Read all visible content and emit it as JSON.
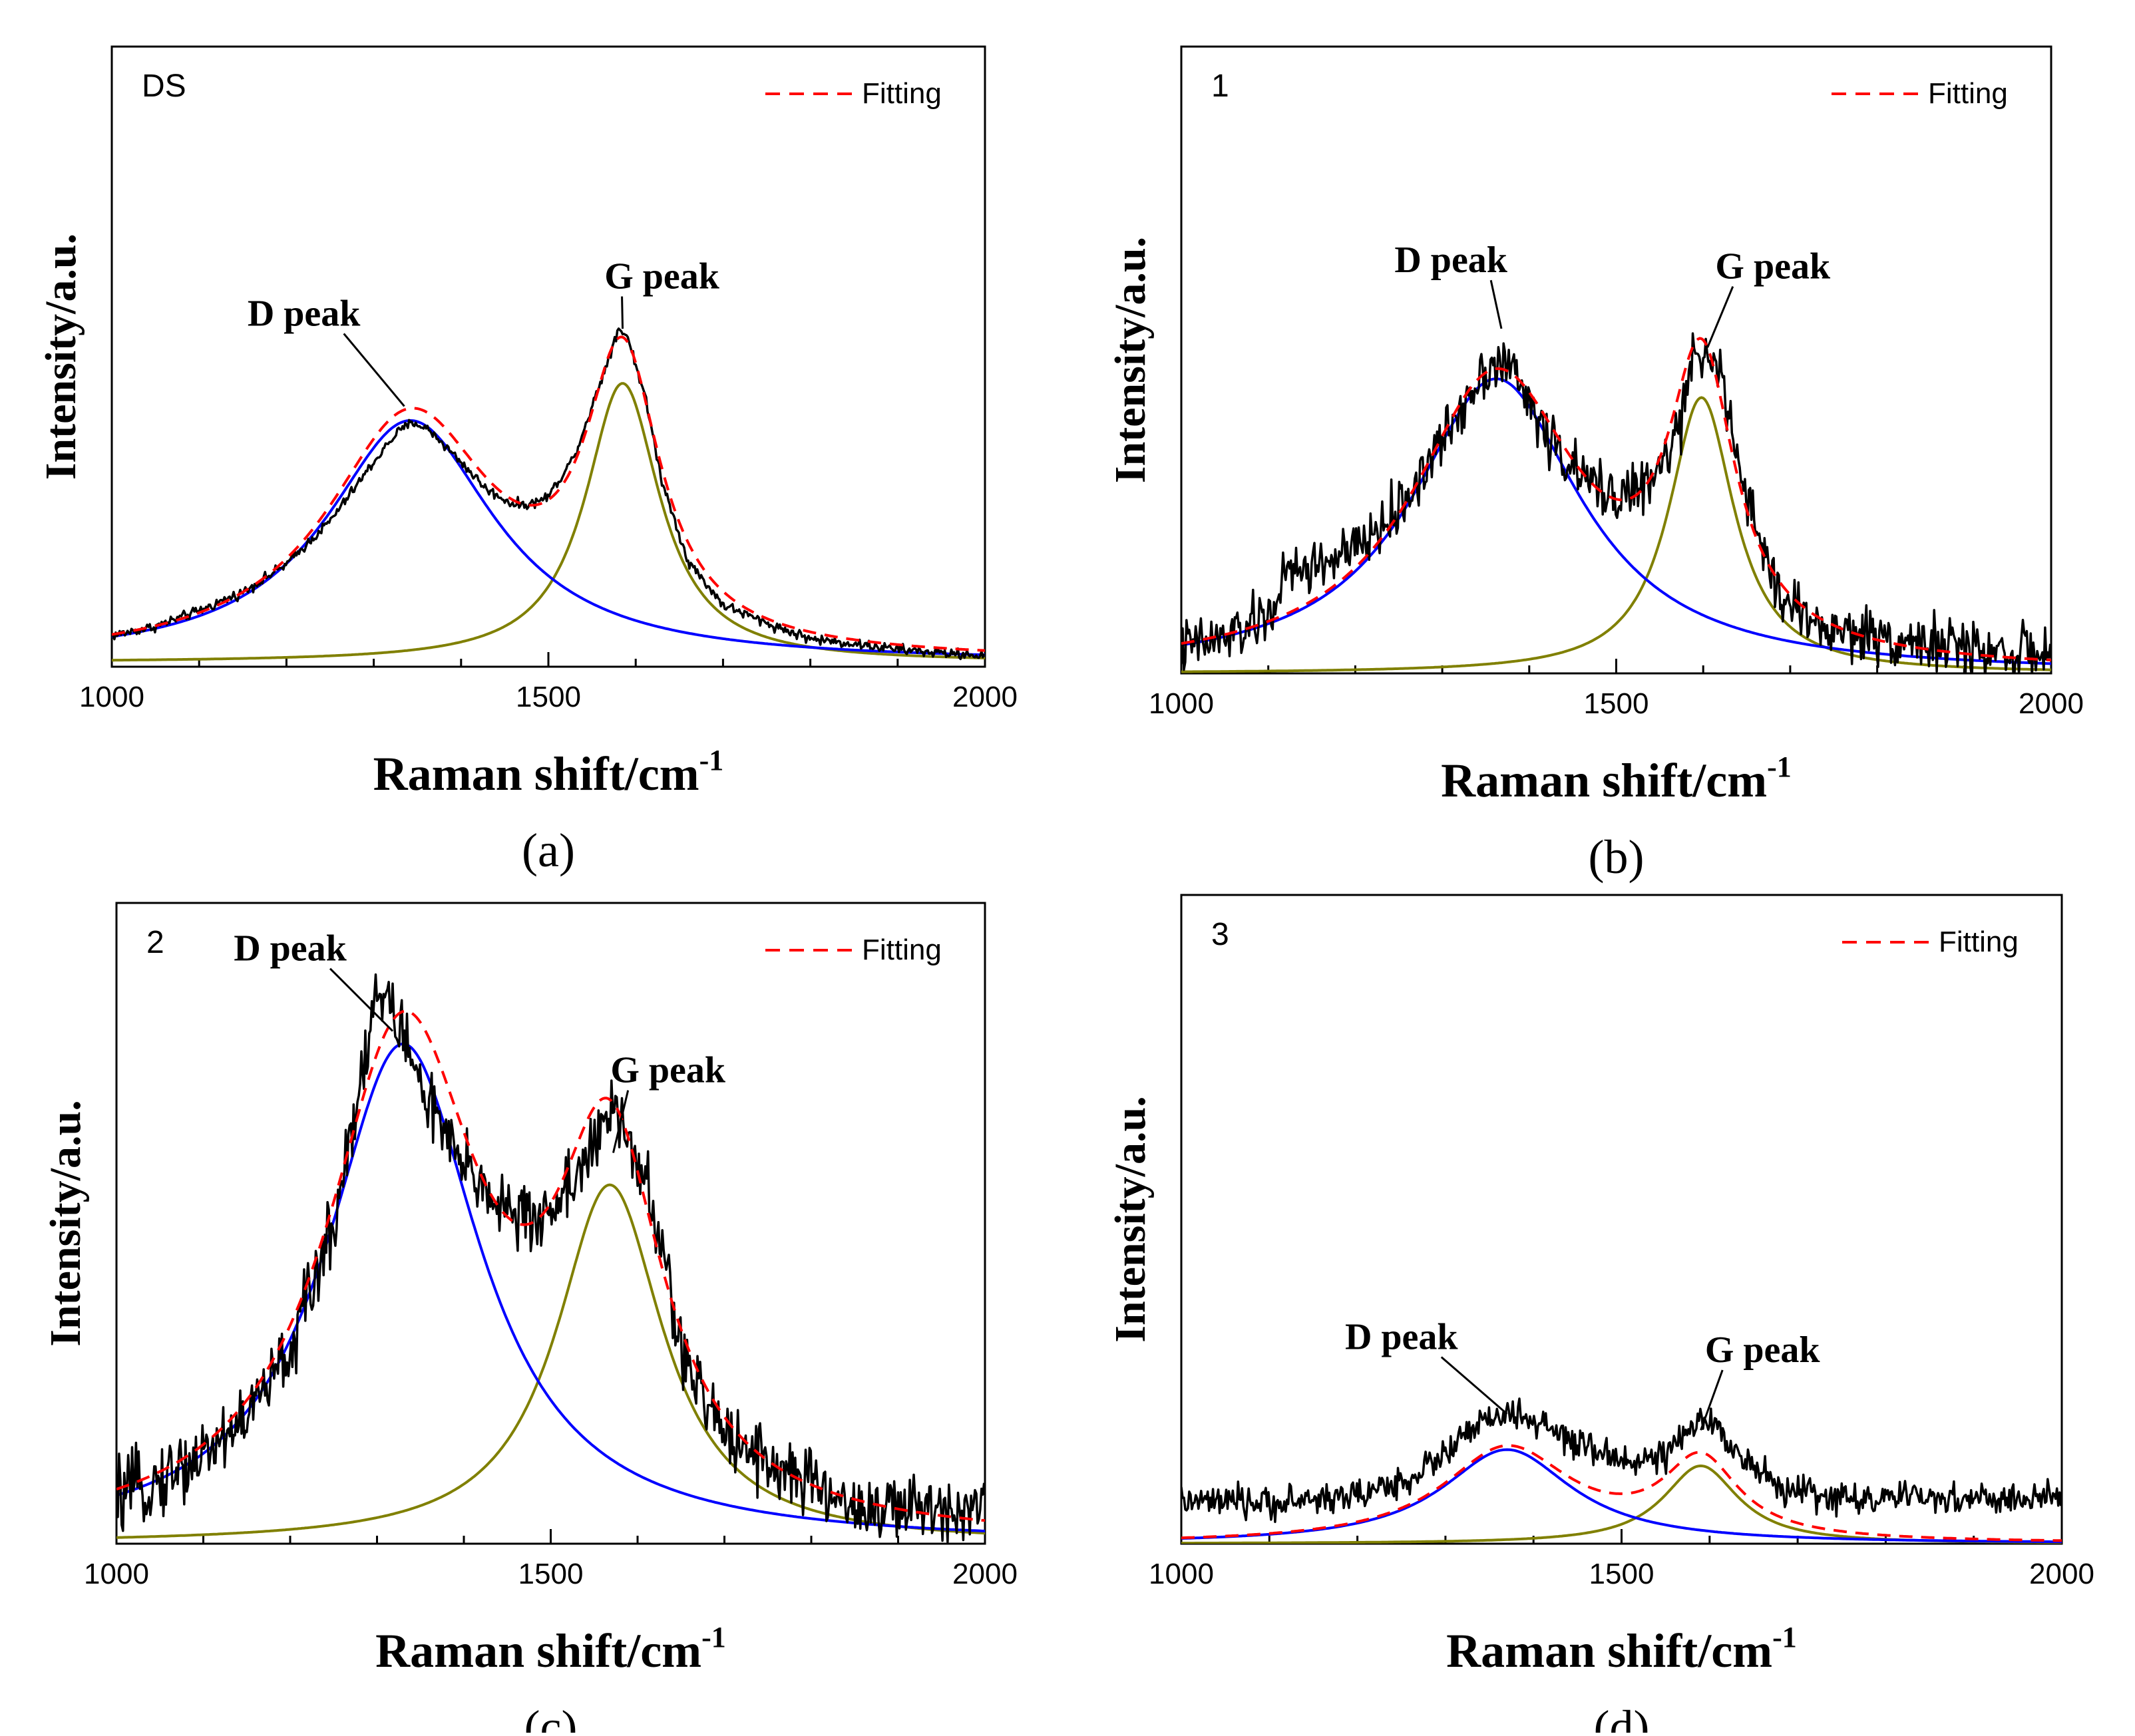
{
  "figure": {
    "panels_order": [
      "a",
      "b",
      "c",
      "d"
    ]
  },
  "colors": {
    "measured": "#000000",
    "fitting": "#ff0000",
    "d_component": "#0000ff",
    "g_component": "#808000"
  },
  "chart_data": [
    {
      "type": "line",
      "panel_label": "(a)",
      "sample_label": "DS",
      "xlabel": "Raman shift/cm",
      "xlabel_sup": "-1",
      "ylabel": "Intensity/a.u.",
      "xlim": [
        1000,
        2000
      ],
      "ylim": [
        0,
        1
      ],
      "x_ticks": [
        1000,
        1500,
        2000
      ],
      "legend": {
        "placement": "top-right",
        "entries": [
          "Fitting"
        ]
      },
      "annotations": [
        {
          "text": "D peak",
          "x_label": 1220,
          "y_label": 0.55,
          "x_arrow": 1335,
          "y_arrow": 0.42
        },
        {
          "text": "G peak",
          "x_label": 1630,
          "y_label": 0.61,
          "x_arrow": 1585,
          "y_arrow": 0.545
        }
      ],
      "series": [
        {
          "role": "d",
          "shape": "lorentzian",
          "center": 1342,
          "half_width": 118,
          "amplitude": 0.39,
          "baseline": 0.007
        },
        {
          "role": "g",
          "shape": "lorentzian",
          "center": 1585,
          "half_width": 52,
          "amplitude": 0.45,
          "baseline": 0.007
        },
        {
          "role": "fit",
          "note": "sum of D and G components"
        },
        {
          "role": "measured",
          "points": [
            [
              1000,
              0.05
            ],
            [
              1050,
              0.065
            ],
            [
              1100,
              0.09
            ],
            [
              1150,
              0.12
            ],
            [
              1200,
              0.165
            ],
            [
              1250,
              0.235
            ],
            [
              1300,
              0.33
            ],
            [
              1325,
              0.375
            ],
            [
              1345,
              0.395
            ],
            [
              1365,
              0.38
            ],
            [
              1400,
              0.33
            ],
            [
              1430,
              0.285
            ],
            [
              1460,
              0.262
            ],
            [
              1480,
              0.262
            ],
            [
              1500,
              0.275
            ],
            [
              1530,
              0.34
            ],
            [
              1560,
              0.46
            ],
            [
              1580,
              0.545
            ],
            [
              1590,
              0.535
            ],
            [
              1610,
              0.44
            ],
            [
              1630,
              0.3
            ],
            [
              1660,
              0.17
            ],
            [
              1700,
              0.1
            ],
            [
              1750,
              0.07
            ],
            [
              1800,
              0.045
            ],
            [
              1850,
              0.037
            ],
            [
              1900,
              0.028
            ],
            [
              1950,
              0.022
            ],
            [
              2000,
              0.018
            ]
          ],
          "noise": 0.004
        }
      ]
    },
    {
      "type": "line",
      "panel_label": "(b)",
      "sample_label": "1",
      "xlabel": "Raman shift/cm",
      "xlabel_sup": "-1",
      "ylabel": "Intensity/a.u.",
      "xlim": [
        1000,
        2000
      ],
      "ylim": [
        0,
        1
      ],
      "x_ticks": [
        1000,
        1500,
        2000
      ],
      "legend": {
        "placement": "top-right",
        "entries": [
          "Fitting"
        ]
      },
      "annotations": [
        {
          "text": "D peak",
          "x_label": 1310,
          "y_label": 0.64,
          "x_arrow": 1368,
          "y_arrow": 0.55
        },
        {
          "text": "G peak",
          "x_label": 1680,
          "y_label": 0.63,
          "x_arrow": 1605,
          "y_arrow": 0.52
        }
      ],
      "series": [
        {
          "role": "d",
          "shape": "lorentzian",
          "center": 1362,
          "half_width": 118,
          "amplitude": 0.47,
          "baseline": 0.0
        },
        {
          "role": "g",
          "shape": "lorentzian",
          "center": 1598,
          "half_width": 46,
          "amplitude": 0.44,
          "baseline": 0.0
        },
        {
          "role": "fit",
          "note": "sum of D and G components"
        },
        {
          "role": "measured",
          "points": [
            [
              1000,
              0.04
            ],
            [
              1050,
              0.055
            ],
            [
              1100,
              0.09
            ],
            [
              1120,
              0.155
            ],
            [
              1150,
              0.17
            ],
            [
              1200,
              0.195
            ],
            [
              1250,
              0.26
            ],
            [
              1300,
              0.37
            ],
            [
              1340,
              0.47
            ],
            [
              1360,
              0.5
            ],
            [
              1380,
              0.485
            ],
            [
              1420,
              0.38
            ],
            [
              1460,
              0.31
            ],
            [
              1500,
              0.285
            ],
            [
              1540,
              0.3
            ],
            [
              1570,
              0.38
            ],
            [
              1590,
              0.5
            ],
            [
              1605,
              0.53
            ],
            [
              1620,
              0.47
            ],
            [
              1650,
              0.27
            ],
            [
              1690,
              0.12
            ],
            [
              1740,
              0.07
            ],
            [
              1800,
              0.06
            ],
            [
              1850,
              0.05
            ],
            [
              1900,
              0.04
            ],
            [
              1950,
              0.035
            ],
            [
              2000,
              0.03
            ]
          ],
          "noise": 0.022
        }
      ]
    },
    {
      "type": "line",
      "panel_label": "(c)",
      "sample_label": "2",
      "xlabel": "Raman shift/cm",
      "xlabel_sup": "-1",
      "ylabel": "Intensity/a.u.",
      "xlim": [
        1000,
        2000
      ],
      "ylim": [
        0,
        1
      ],
      "x_ticks": [
        1000,
        1500,
        2000
      ],
      "legend": {
        "placement": "top-right",
        "entries": [
          "Fitting"
        ]
      },
      "annotations": [
        {
          "text": "D peak",
          "x_label": 1200,
          "y_label": 0.91,
          "x_arrow": 1318,
          "y_arrow": 0.8
        },
        {
          "text": "G peak",
          "x_label": 1635,
          "y_label": 0.72,
          "x_arrow": 1572,
          "y_arrow": 0.61
        }
      ],
      "series": [
        {
          "role": "d",
          "shape": "lorentzian",
          "center": 1330,
          "half_width": 108,
          "amplitude": 0.78,
          "baseline": 0.0
        },
        {
          "role": "g",
          "shape": "lorentzian",
          "center": 1568,
          "half_width": 75,
          "amplitude": 0.56,
          "baseline": 0.0
        },
        {
          "role": "fit",
          "note": "sum of D and G components"
        },
        {
          "role": "measured",
          "points": [
            [
              1000,
              0.07
            ],
            [
              1050,
              0.1
            ],
            [
              1100,
              0.14
            ],
            [
              1150,
              0.2
            ],
            [
              1200,
              0.3
            ],
            [
              1250,
              0.5
            ],
            [
              1280,
              0.72
            ],
            [
              1300,
              0.86
            ],
            [
              1320,
              0.83
            ],
            [
              1350,
              0.72
            ],
            [
              1390,
              0.6
            ],
            [
              1430,
              0.55
            ],
            [
              1470,
              0.5
            ],
            [
              1500,
              0.52
            ],
            [
              1530,
              0.58
            ],
            [
              1560,
              0.64
            ],
            [
              1575,
              0.68
            ],
            [
              1600,
              0.6
            ],
            [
              1630,
              0.45
            ],
            [
              1650,
              0.3
            ],
            [
              1680,
              0.21
            ],
            [
              1720,
              0.16
            ],
            [
              1760,
              0.12
            ],
            [
              1800,
              0.09
            ],
            [
              1850,
              0.06
            ],
            [
              1900,
              0.05
            ],
            [
              1950,
              0.055
            ],
            [
              2000,
              0.07
            ]
          ],
          "noise": 0.028
        }
      ]
    },
    {
      "type": "line",
      "panel_label": "(d)",
      "sample_label": "3",
      "xlabel": "Raman shift/cm",
      "xlabel_sup": "-1",
      "ylabel": "Intensity/a.u.",
      "xlim": [
        1000,
        2000
      ],
      "ylim": [
        0,
        1
      ],
      "x_ticks": [
        1000,
        1500,
        2000
      ],
      "legend": {
        "placement": "top-right",
        "entries": [
          "Fitting"
        ]
      },
      "annotations": [
        {
          "text": "D peak",
          "x_label": 1250,
          "y_label": 0.3,
          "x_arrow": 1370,
          "y_arrow": 0.2
        },
        {
          "text": "G peak",
          "x_label": 1660,
          "y_label": 0.28,
          "x_arrow": 1590,
          "y_arrow": 0.175
        }
      ],
      "series": [
        {
          "role": "d",
          "shape": "lorentzian",
          "center": 1370,
          "half_width": 90,
          "amplitude": 0.145,
          "baseline": 0.0
        },
        {
          "role": "g",
          "shape": "lorentzian",
          "center": 1590,
          "half_width": 52,
          "amplitude": 0.12,
          "baseline": 0.0
        },
        {
          "role": "fit",
          "note": "sum of D and G components"
        },
        {
          "role": "measured",
          "points": [
            [
              1000,
              0.065
            ],
            [
              1100,
              0.062
            ],
            [
              1200,
              0.075
            ],
            [
              1260,
              0.1
            ],
            [
              1300,
              0.14
            ],
            [
              1340,
              0.185
            ],
            [
              1370,
              0.2
            ],
            [
              1400,
              0.19
            ],
            [
              1450,
              0.15
            ],
            [
              1500,
              0.13
            ],
            [
              1540,
              0.13
            ],
            [
              1570,
              0.16
            ],
            [
              1590,
              0.19
            ],
            [
              1610,
              0.18
            ],
            [
              1640,
              0.13
            ],
            [
              1680,
              0.085
            ],
            [
              1750,
              0.07
            ],
            [
              1850,
              0.07
            ],
            [
              1950,
              0.068
            ],
            [
              2000,
              0.07
            ]
          ],
          "noise": 0.012
        }
      ]
    }
  ]
}
